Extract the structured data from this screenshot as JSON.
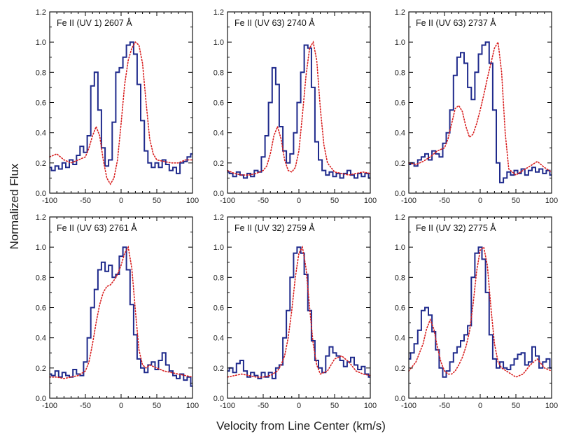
{
  "figure": {
    "xlabel": "Velocity from Line Center (km/s)",
    "ylabel": "Normalized Flux"
  },
  "colors": {
    "observed": "#1f2a8c",
    "model": "#d81e1e",
    "frame": "#000000"
  },
  "chart_data": [
    {
      "type": "line",
      "title": "Fe II (UV 1) 2607 Å",
      "xlim": [
        -100,
        100
      ],
      "ylim": [
        0,
        1.2
      ],
      "xticks": [
        -100,
        -50,
        0,
        50,
        100
      ],
      "yticks": [
        0.0,
        0.2,
        0.4,
        0.6,
        0.8,
        1.0,
        1.2
      ],
      "series": [
        {
          "name": "observed",
          "style": "step",
          "x": [
            -100,
            -95,
            -90,
            -85,
            -80,
            -75,
            -70,
            -65,
            -60,
            -55,
            -50,
            -45,
            -40,
            -35,
            -30,
            -25,
            -20,
            -15,
            -10,
            -5,
            0,
            5,
            10,
            15,
            20,
            25,
            30,
            35,
            40,
            45,
            50,
            55,
            60,
            65,
            70,
            75,
            80,
            85,
            90,
            95,
            100
          ],
          "y": [
            0.17,
            0.15,
            0.18,
            0.16,
            0.2,
            0.17,
            0.22,
            0.19,
            0.25,
            0.31,
            0.27,
            0.38,
            0.71,
            0.8,
            0.55,
            0.3,
            0.18,
            0.22,
            0.47,
            0.8,
            0.83,
            0.9,
            0.98,
            1.0,
            0.92,
            0.72,
            0.48,
            0.28,
            0.2,
            0.17,
            0.2,
            0.17,
            0.22,
            0.19,
            0.15,
            0.17,
            0.13,
            0.2,
            0.21,
            0.24,
            0.26
          ]
        },
        {
          "name": "model",
          "style": "dotted",
          "x": [
            -100,
            -90,
            -80,
            -70,
            -60,
            -50,
            -45,
            -40,
            -35,
            -30,
            -25,
            -20,
            -15,
            -10,
            -5,
            0,
            5,
            10,
            15,
            20,
            25,
            30,
            35,
            40,
            45,
            50,
            60,
            70,
            80,
            90,
            100
          ],
          "y": [
            0.24,
            0.26,
            0.22,
            0.2,
            0.22,
            0.24,
            0.3,
            0.38,
            0.44,
            0.38,
            0.22,
            0.1,
            0.06,
            0.1,
            0.22,
            0.46,
            0.72,
            0.88,
            0.96,
            1.0,
            0.98,
            0.86,
            0.6,
            0.36,
            0.26,
            0.22,
            0.21,
            0.2,
            0.2,
            0.22,
            0.22
          ]
        }
      ]
    },
    {
      "type": "line",
      "title": "Fe II (UV 63) 2740 Å",
      "xlim": [
        -100,
        100
      ],
      "ylim": [
        0,
        1.2
      ],
      "xticks": [
        -100,
        -50,
        0,
        50,
        100
      ],
      "yticks": [
        0.0,
        0.2,
        0.4,
        0.6,
        0.8,
        1.0,
        1.2
      ],
      "series": [
        {
          "name": "observed",
          "style": "step",
          "x": [
            -100,
            -95,
            -90,
            -85,
            -80,
            -75,
            -70,
            -65,
            -60,
            -55,
            -50,
            -45,
            -40,
            -35,
            -30,
            -25,
            -20,
            -15,
            -10,
            -5,
            0,
            5,
            10,
            15,
            20,
            25,
            30,
            35,
            40,
            45,
            50,
            55,
            60,
            65,
            70,
            75,
            80,
            85,
            90,
            95,
            100
          ],
          "y": [
            0.14,
            0.13,
            0.11,
            0.14,
            0.12,
            0.1,
            0.13,
            0.11,
            0.15,
            0.14,
            0.24,
            0.38,
            0.6,
            0.83,
            0.72,
            0.44,
            0.28,
            0.2,
            0.26,
            0.4,
            0.6,
            0.8,
            0.98,
            0.96,
            0.7,
            0.34,
            0.22,
            0.15,
            0.12,
            0.14,
            0.11,
            0.13,
            0.1,
            0.13,
            0.15,
            0.12,
            0.1,
            0.13,
            0.11,
            0.13,
            0.1
          ]
        },
        {
          "name": "model",
          "style": "dotted",
          "x": [
            -100,
            -90,
            -80,
            -70,
            -60,
            -50,
            -45,
            -40,
            -35,
            -30,
            -25,
            -20,
            -15,
            -10,
            -5,
            0,
            5,
            10,
            15,
            20,
            25,
            30,
            35,
            40,
            50,
            60,
            70,
            80,
            90,
            100
          ],
          "y": [
            0.15,
            0.13,
            0.12,
            0.12,
            0.13,
            0.15,
            0.18,
            0.26,
            0.38,
            0.44,
            0.36,
            0.22,
            0.15,
            0.14,
            0.17,
            0.28,
            0.52,
            0.78,
            0.96,
            1.0,
            0.88,
            0.56,
            0.32,
            0.2,
            0.14,
            0.13,
            0.12,
            0.13,
            0.14,
            0.13
          ]
        }
      ]
    },
    {
      "type": "line",
      "title": "Fe II (UV 63) 2737 Å",
      "xlim": [
        -100,
        100
      ],
      "ylim": [
        0,
        1.2
      ],
      "xticks": [
        -100,
        -50,
        0,
        50,
        100
      ],
      "yticks": [
        0.0,
        0.2,
        0.4,
        0.6,
        0.8,
        1.0,
        1.2
      ],
      "series": [
        {
          "name": "observed",
          "style": "step",
          "x": [
            -100,
            -95,
            -90,
            -85,
            -80,
            -75,
            -70,
            -65,
            -60,
            -55,
            -50,
            -45,
            -40,
            -35,
            -30,
            -25,
            -20,
            -15,
            -10,
            -5,
            0,
            5,
            10,
            15,
            20,
            25,
            30,
            35,
            40,
            45,
            50,
            55,
            60,
            65,
            70,
            75,
            80,
            85,
            90,
            95,
            100
          ],
          "y": [
            0.19,
            0.2,
            0.18,
            0.22,
            0.24,
            0.26,
            0.22,
            0.28,
            0.26,
            0.24,
            0.33,
            0.4,
            0.55,
            0.78,
            0.9,
            0.93,
            0.86,
            0.7,
            0.62,
            0.8,
            0.92,
            0.98,
            1.0,
            0.86,
            0.55,
            0.2,
            0.07,
            0.1,
            0.14,
            0.12,
            0.15,
            0.13,
            0.16,
            0.12,
            0.15,
            0.17,
            0.14,
            0.16,
            0.13,
            0.15,
            0.12
          ]
        },
        {
          "name": "model",
          "style": "dotted",
          "x": [
            -100,
            -90,
            -80,
            -70,
            -60,
            -50,
            -45,
            -40,
            -35,
            -30,
            -25,
            -20,
            -15,
            -10,
            -5,
            0,
            5,
            10,
            15,
            20,
            25,
            30,
            35,
            40,
            50,
            60,
            70,
            80,
            90,
            100
          ],
          "y": [
            0.2,
            0.19,
            0.21,
            0.24,
            0.28,
            0.3,
            0.36,
            0.46,
            0.56,
            0.58,
            0.54,
            0.44,
            0.37,
            0.39,
            0.46,
            0.55,
            0.65,
            0.76,
            0.86,
            0.96,
            1.0,
            0.8,
            0.4,
            0.16,
            0.12,
            0.15,
            0.18,
            0.21,
            0.17,
            0.14
          ]
        }
      ]
    },
    {
      "type": "line",
      "title": "Fe II (UV 63) 2761 Å",
      "xlim": [
        -100,
        100
      ],
      "ylim": [
        0,
        1.2
      ],
      "xticks": [
        -100,
        -50,
        0,
        50,
        100
      ],
      "yticks": [
        0.0,
        0.2,
        0.4,
        0.6,
        0.8,
        1.0,
        1.2
      ],
      "series": [
        {
          "name": "observed",
          "style": "step",
          "x": [
            -100,
            -95,
            -90,
            -85,
            -80,
            -75,
            -70,
            -65,
            -60,
            -55,
            -50,
            -45,
            -40,
            -35,
            -30,
            -25,
            -20,
            -15,
            -10,
            -5,
            0,
            5,
            10,
            15,
            20,
            25,
            30,
            35,
            40,
            45,
            50,
            55,
            60,
            65,
            70,
            75,
            80,
            85,
            90,
            95,
            100
          ],
          "y": [
            0.16,
            0.15,
            0.18,
            0.14,
            0.17,
            0.15,
            0.14,
            0.19,
            0.16,
            0.15,
            0.24,
            0.4,
            0.6,
            0.72,
            0.85,
            0.9,
            0.84,
            0.88,
            0.8,
            0.82,
            0.94,
            1.0,
            0.85,
            0.62,
            0.42,
            0.26,
            0.2,
            0.17,
            0.22,
            0.24,
            0.19,
            0.25,
            0.3,
            0.22,
            0.18,
            0.15,
            0.13,
            0.16,
            0.12,
            0.14,
            0.08
          ]
        },
        {
          "name": "model",
          "style": "dotted",
          "x": [
            -100,
            -90,
            -80,
            -70,
            -60,
            -50,
            -45,
            -40,
            -35,
            -30,
            -25,
            -20,
            -15,
            -10,
            -5,
            0,
            5,
            10,
            15,
            20,
            25,
            30,
            35,
            40,
            50,
            60,
            70,
            80,
            90,
            100
          ],
          "y": [
            0.14,
            0.14,
            0.13,
            0.14,
            0.15,
            0.18,
            0.24,
            0.36,
            0.5,
            0.62,
            0.7,
            0.74,
            0.75,
            0.78,
            0.82,
            0.88,
            0.96,
            1.0,
            0.86,
            0.58,
            0.32,
            0.22,
            0.2,
            0.22,
            0.2,
            0.18,
            0.17,
            0.16,
            0.15,
            0.14
          ]
        }
      ]
    },
    {
      "type": "line",
      "title": "Fe II (UV 32) 2759 Å",
      "xlim": [
        -100,
        100
      ],
      "ylim": [
        0,
        1.2
      ],
      "xticks": [
        -100,
        -50,
        0,
        50,
        100
      ],
      "yticks": [
        0.0,
        0.2,
        0.4,
        0.6,
        0.8,
        1.0,
        1.2
      ],
      "series": [
        {
          "name": "observed",
          "style": "step",
          "x": [
            -100,
            -95,
            -90,
            -85,
            -80,
            -75,
            -70,
            -65,
            -60,
            -55,
            -50,
            -45,
            -40,
            -35,
            -30,
            -25,
            -20,
            -15,
            -10,
            -5,
            0,
            5,
            10,
            15,
            20,
            25,
            30,
            35,
            40,
            45,
            50,
            55,
            60,
            65,
            70,
            75,
            80,
            85,
            90,
            95,
            100
          ],
          "y": [
            0.18,
            0.2,
            0.17,
            0.23,
            0.25,
            0.18,
            0.14,
            0.17,
            0.15,
            0.13,
            0.17,
            0.14,
            0.17,
            0.13,
            0.2,
            0.22,
            0.4,
            0.58,
            0.8,
            0.96,
            1.0,
            0.96,
            0.82,
            0.58,
            0.38,
            0.25,
            0.2,
            0.17,
            0.28,
            0.34,
            0.3,
            0.28,
            0.25,
            0.21,
            0.24,
            0.27,
            0.22,
            0.19,
            0.21,
            0.16,
            0.14
          ]
        },
        {
          "name": "model",
          "style": "dotted",
          "x": [
            -100,
            -90,
            -80,
            -70,
            -60,
            -50,
            -40,
            -30,
            -25,
            -20,
            -15,
            -10,
            -5,
            0,
            5,
            10,
            15,
            20,
            25,
            30,
            40,
            50,
            60,
            70,
            80,
            90,
            100
          ],
          "y": [
            0.14,
            0.15,
            0.16,
            0.15,
            0.14,
            0.14,
            0.15,
            0.18,
            0.22,
            0.28,
            0.4,
            0.58,
            0.8,
            0.96,
            1.0,
            0.86,
            0.6,
            0.36,
            0.22,
            0.16,
            0.18,
            0.26,
            0.28,
            0.24,
            0.18,
            0.16,
            0.15
          ]
        }
      ]
    },
    {
      "type": "line",
      "title": "Fe II (UV 32) 2775 Å",
      "xlim": [
        -100,
        100
      ],
      "ylim": [
        0,
        1.2
      ],
      "xticks": [
        -100,
        -50,
        0,
        50,
        100
      ],
      "yticks": [
        0.0,
        0.2,
        0.4,
        0.6,
        0.8,
        1.0,
        1.2
      ],
      "series": [
        {
          "name": "observed",
          "style": "step",
          "x": [
            -100,
            -95,
            -90,
            -85,
            -80,
            -75,
            -70,
            -65,
            -60,
            -55,
            -50,
            -45,
            -40,
            -35,
            -30,
            -25,
            -20,
            -15,
            -10,
            -5,
            0,
            5,
            10,
            15,
            20,
            25,
            30,
            35,
            40,
            45,
            50,
            55,
            60,
            65,
            70,
            75,
            80,
            85,
            90,
            95,
            100
          ],
          "y": [
            0.26,
            0.3,
            0.36,
            0.45,
            0.58,
            0.6,
            0.55,
            0.44,
            0.32,
            0.2,
            0.14,
            0.18,
            0.24,
            0.3,
            0.34,
            0.38,
            0.42,
            0.48,
            0.8,
            0.96,
            1.0,
            0.92,
            0.7,
            0.42,
            0.26,
            0.2,
            0.24,
            0.2,
            0.19,
            0.22,
            0.26,
            0.29,
            0.3,
            0.22,
            0.24,
            0.34,
            0.28,
            0.2,
            0.24,
            0.26,
            0.2
          ]
        },
        {
          "name": "model",
          "style": "dotted",
          "x": [
            -100,
            -90,
            -80,
            -75,
            -70,
            -65,
            -60,
            -55,
            -50,
            -45,
            -40,
            -35,
            -30,
            -25,
            -20,
            -15,
            -10,
            -5,
            0,
            5,
            10,
            15,
            20,
            25,
            30,
            40,
            50,
            60,
            70,
            80,
            90,
            100
          ],
          "y": [
            0.18,
            0.24,
            0.36,
            0.46,
            0.52,
            0.46,
            0.34,
            0.24,
            0.18,
            0.16,
            0.16,
            0.18,
            0.22,
            0.27,
            0.34,
            0.44,
            0.62,
            0.84,
            0.98,
            1.0,
            0.88,
            0.6,
            0.36,
            0.24,
            0.2,
            0.17,
            0.14,
            0.16,
            0.22,
            0.26,
            0.2,
            0.18
          ]
        }
      ]
    }
  ]
}
